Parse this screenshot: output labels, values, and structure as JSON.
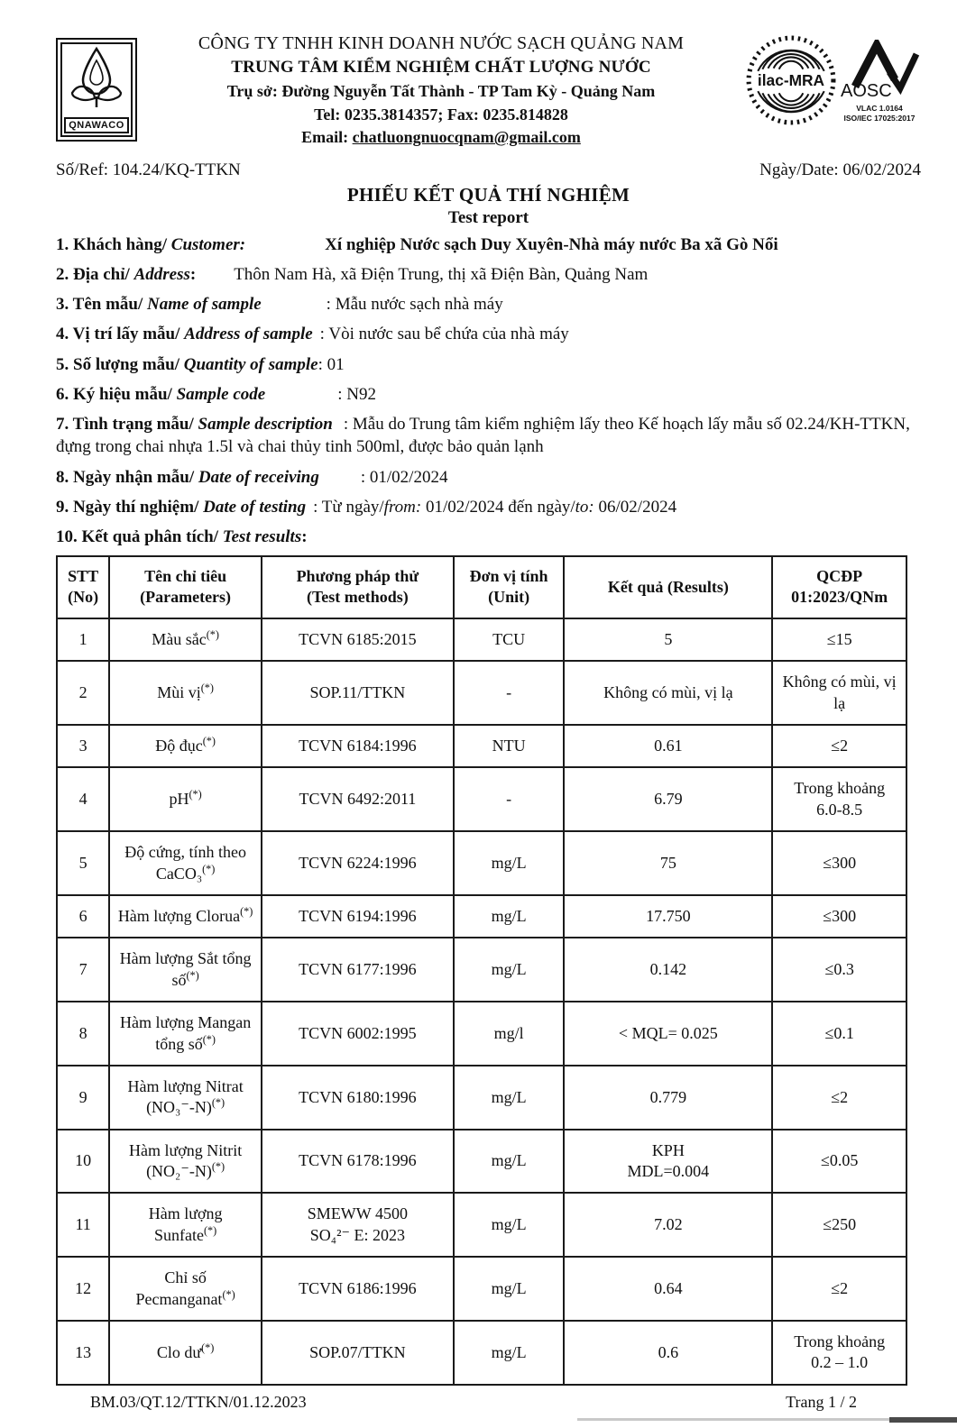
{
  "logo": {
    "text": "QNAWACO"
  },
  "header": {
    "line1": "CÔNG TY TNHH KINH DOANH NƯỚC SẠCH QUẢNG NAM",
    "line2": "TRUNG TÂM KIỂM NGHIỆM CHẤT LƯỢNG NƯỚC",
    "line3": "Trụ sở: Đường Nguyễn Tất Thành - TP Tam Kỳ -  Quảng Nam",
    "line4": "Tel: 0235.3814357; Fax: 0235.814828",
    "email_label": "Email:",
    "email": "chatluongnuocqnam@gmail.com"
  },
  "accreditation": {
    "ilac": "ilac-MRA",
    "aosc": "AOSC",
    "vlac": "VLAC 1.0164",
    "iso": "ISO/IEC 17025:2017"
  },
  "meta": {
    "ref": "Số/Ref: 104.24/KQ-TTKN",
    "date": "Ngày/Date: 06/02/2024",
    "title": "PHIẾU KẾT QUẢ THÍ NGHIỆM",
    "subtitle": "Test report"
  },
  "info": [
    [
      {
        "t": "1. Khách hàng/ ",
        "b": 1
      },
      {
        "t": "Customer:",
        "b": 1,
        "i": 1
      },
      {
        "t": "Xí nghiệp Nước sạch Duy Xuyên-Nhà máy nước Ba xã Gò Nổi",
        "b": 1,
        "g": 88
      }
    ],
    [
      {
        "t": "2. Địa chỉ/ ",
        "b": 1
      },
      {
        "t": "Address",
        "b": 1,
        "i": 1
      },
      {
        "t": ":",
        "b": 1
      },
      {
        "t": "Thôn Nam Hà, xã Điện Trung, thị xã Điện Bàn, Quảng Nam",
        "g": 42
      }
    ],
    [
      {
        "t": "3. Tên mẫu/ ",
        "b": 1
      },
      {
        "t": "Name of sample",
        "b": 1,
        "i": 1
      },
      {
        "t": ": Mẫu nước sạch nhà máy",
        "g": 72
      }
    ],
    [
      {
        "t": "4. Vị trí lấy mẫu/ ",
        "b": 1
      },
      {
        "t": "Address of sample",
        "b": 1,
        "i": 1
      },
      {
        "t": ": Vòi nước sau bể chứa của nhà máy",
        "g": 8
      }
    ],
    [
      {
        "t": "5. Số lượng mẫu/ ",
        "b": 1
      },
      {
        "t": "Quantity of sample",
        "b": 1,
        "i": 1
      },
      {
        "t": ": 01"
      }
    ],
    [
      {
        "t": "6. Ký hiệu mẫu/ ",
        "b": 1
      },
      {
        "t": "Sample code",
        "b": 1,
        "i": 1
      },
      {
        "t": ": N92",
        "g": 80
      }
    ],
    [
      {
        "t": "7. Tình trạng mẫu/ ",
        "b": 1
      },
      {
        "t": "Sample description",
        "b": 1,
        "i": 1
      },
      {
        "t": ": Mẫu do Trung tâm kiểm nghiệm lấy theo Kế hoạch lấy mẫu số 02.24/KH-TTKN, đựng trong chai nhựa 1.5l và chai thủy tinh 500ml, được bảo quản lạnh",
        "g": 12
      }
    ],
    [
      {
        "t": "8. Ngày nhận mẫu/ ",
        "b": 1
      },
      {
        "t": "Date of receiving",
        "b": 1,
        "i": 1
      },
      {
        "t": ": 01/02/2024",
        "g": 46
      }
    ],
    [
      {
        "t": "9. Ngày thí nghiệm/ ",
        "b": 1
      },
      {
        "t": "Date of testing",
        "b": 1,
        "i": 1
      },
      {
        "t": ": Từ ngày/",
        "g": 8
      },
      {
        "t": "from:",
        "i": 1
      },
      {
        "t": " 01/02/2024  đến ngày/"
      },
      {
        "t": "to:",
        "i": 1
      },
      {
        "t": " 06/02/2024"
      }
    ],
    [
      {
        "t": "10. Kết quả phân tích/ ",
        "b": 1
      },
      {
        "t": "Test results",
        "b": 1,
        "i": 1
      },
      {
        "t": ":",
        "b": 1
      }
    ]
  ],
  "table": {
    "columns": [
      "STT\n(No)",
      "Tên chỉ tiêu\n(Parameters)",
      "Phương pháp thử\n(Test methods)",
      "Đơn vị tính\n(Unit)",
      "Kết quả (Results)",
      "QCĐP\n01:2023/QNm"
    ],
    "rows": [
      {
        "no": "1",
        "param": "Màu sắc",
        "sup": "(*)",
        "method": "TCVN 6185:2015",
        "unit": "TCU",
        "result": "5",
        "limit": "≤15"
      },
      {
        "no": "2",
        "param": "Mùi vị",
        "sup": "(*)",
        "method": "SOP.11/TTKN",
        "unit": "-",
        "result": "Không có mùi, vị lạ",
        "limit": "Không có mùi, vị lạ"
      },
      {
        "no": "3",
        "param": "Độ đục",
        "sup": "(*)",
        "method": "TCVN 6184:1996",
        "unit": "NTU",
        "result": "0.61",
        "limit": "≤2"
      },
      {
        "no": "4",
        "param": "pH",
        "sup": "(*)",
        "method": "TCVN 6492:2011",
        "unit": "-",
        "result": "6.79",
        "limit": "Trong khoảng\n6.0-8.5"
      },
      {
        "no": "5",
        "param": "Độ cứng, tính theo CaCO₃",
        "sup": "(*)",
        "method": "TCVN 6224:1996",
        "unit": "mg/L",
        "result": "75",
        "limit": "≤300"
      },
      {
        "no": "6",
        "param": "Hàm lượng Clorua",
        "sup": "(*)",
        "method": "TCVN 6194:1996",
        "unit": "mg/L",
        "result": "17.750",
        "limit": "≤300"
      },
      {
        "no": "7",
        "param": "Hàm lượng Sắt tổng số",
        "sup": "(*)",
        "method": "TCVN 6177:1996",
        "unit": "mg/L",
        "result": "0.142",
        "limit": "≤0.3"
      },
      {
        "no": "8",
        "param": "Hàm lượng Mangan tổng số",
        "sup": "(*)",
        "method": "TCVN 6002:1995",
        "unit": "mg/l",
        "result": "< MQL= 0.025",
        "limit": "≤0.1"
      },
      {
        "no": "9",
        "param": "Hàm lượng Nitrat (NO₃⁻-N)",
        "sup": "(*)",
        "method": "TCVN 6180:1996",
        "unit": "mg/L",
        "result": "0.779",
        "limit": "≤2"
      },
      {
        "no": "10",
        "param": "Hàm lượng Nitrit (NO₂⁻-N)",
        "sup": "(*)",
        "method": "TCVN 6178:1996",
        "unit": "mg/L",
        "result": "KPH\nMDL=0.004",
        "limit": "≤0.05"
      },
      {
        "no": "11",
        "param": "Hàm lượng Sunfate",
        "sup": "(*)",
        "method": "SMEWW 4500\nSO₄²⁻ E: 2023",
        "unit": "mg/L",
        "result": "7.02",
        "limit": "≤250"
      },
      {
        "no": "12",
        "param": "Chỉ số Pecmanganat",
        "sup": "(*)",
        "method": "TCVN 6186:1996",
        "unit": "mg/L",
        "result": "0.64",
        "limit": "≤2"
      },
      {
        "no": "13",
        "param": "Clo dư",
        "sup": "(*)",
        "method": "SOP.07/TTKN",
        "unit": "mg/L",
        "result": "0.6",
        "limit": "Trong khoảng\n0.2 – 1.0"
      }
    ]
  },
  "footer": {
    "left": "BM.03/QT.12/TTKN/01.12.2023",
    "right": "Trang 1 / 2"
  }
}
